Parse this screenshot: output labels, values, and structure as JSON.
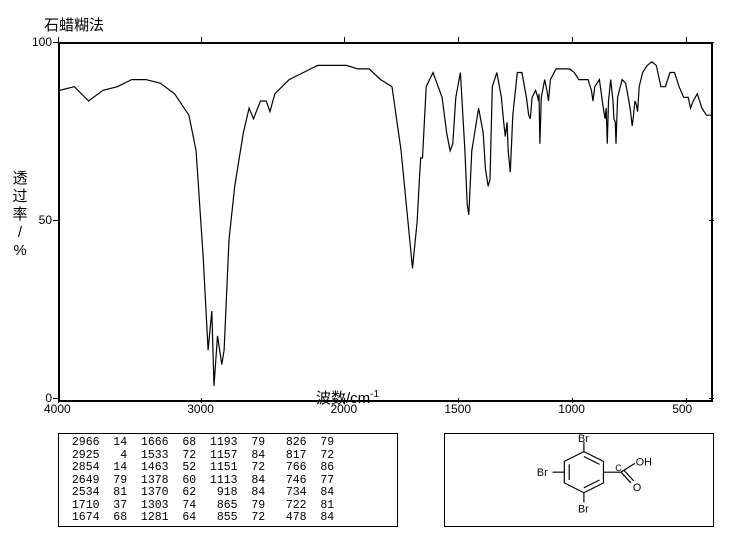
{
  "title_top": "石蜡糊法",
  "y_axis": {
    "label_lines": [
      "透",
      "过",
      "率",
      "/",
      "%"
    ],
    "ticks": [
      {
        "val": 0,
        "frac": 0.0
      },
      {
        "val": 50,
        "frac": 0.5
      },
      {
        "val": 100,
        "frac": 1.0
      }
    ],
    "range": [
      0,
      100
    ]
  },
  "x_axis": {
    "label": "波数/cm",
    "label_sup": "-1",
    "ticks": [
      4000,
      3000,
      2000,
      1500,
      1000,
      500
    ],
    "range": [
      4000,
      400
    ]
  },
  "spectrum": {
    "points": [
      [
        4000,
        87
      ],
      [
        3900,
        88
      ],
      [
        3800,
        84
      ],
      [
        3700,
        87
      ],
      [
        3600,
        88
      ],
      [
        3500,
        90
      ],
      [
        3400,
        90
      ],
      [
        3300,
        89
      ],
      [
        3200,
        86
      ],
      [
        3100,
        80
      ],
      [
        3050,
        70
      ],
      [
        3000,
        40
      ],
      [
        2966,
        14
      ],
      [
        2940,
        25
      ],
      [
        2925,
        4
      ],
      [
        2900,
        18
      ],
      [
        2870,
        10
      ],
      [
        2854,
        14
      ],
      [
        2820,
        45
      ],
      [
        2780,
        60
      ],
      [
        2720,
        75
      ],
      [
        2680,
        82
      ],
      [
        2649,
        79
      ],
      [
        2600,
        84
      ],
      [
        2560,
        84
      ],
      [
        2534,
        81
      ],
      [
        2500,
        86
      ],
      [
        2450,
        88
      ],
      [
        2400,
        90
      ],
      [
        2350,
        91
      ],
      [
        2300,
        92
      ],
      [
        2250,
        93
      ],
      [
        2200,
        94
      ],
      [
        2150,
        94
      ],
      [
        2100,
        94
      ],
      [
        2050,
        94
      ],
      [
        2000,
        94
      ],
      [
        1950,
        93
      ],
      [
        1900,
        93
      ],
      [
        1850,
        90
      ],
      [
        1800,
        88
      ],
      [
        1760,
        70
      ],
      [
        1730,
        50
      ],
      [
        1710,
        37
      ],
      [
        1690,
        50
      ],
      [
        1680,
        62
      ],
      [
        1674,
        68
      ],
      [
        1666,
        68
      ],
      [
        1650,
        88
      ],
      [
        1620,
        92
      ],
      [
        1580,
        85
      ],
      [
        1560,
        75
      ],
      [
        1545,
        70
      ],
      [
        1533,
        72
      ],
      [
        1520,
        85
      ],
      [
        1500,
        92
      ],
      [
        1480,
        70
      ],
      [
        1470,
        55
      ],
      [
        1463,
        52
      ],
      [
        1450,
        70
      ],
      [
        1420,
        82
      ],
      [
        1400,
        75
      ],
      [
        1390,
        65
      ],
      [
        1378,
        60
      ],
      [
        1370,
        62
      ],
      [
        1360,
        88
      ],
      [
        1340,
        92
      ],
      [
        1320,
        85
      ],
      [
        1310,
        78
      ],
      [
        1303,
        74
      ],
      [
        1295,
        78
      ],
      [
        1290,
        70
      ],
      [
        1281,
        64
      ],
      [
        1270,
        80
      ],
      [
        1250,
        92
      ],
      [
        1230,
        92
      ],
      [
        1210,
        85
      ],
      [
        1200,
        80
      ],
      [
        1193,
        79
      ],
      [
        1185,
        85
      ],
      [
        1170,
        87
      ],
      [
        1160,
        85
      ],
      [
        1157,
        84
      ],
      [
        1155,
        86
      ],
      [
        1151,
        72
      ],
      [
        1145,
        85
      ],
      [
        1130,
        90
      ],
      [
        1120,
        87
      ],
      [
        1113,
        84
      ],
      [
        1105,
        90
      ],
      [
        1080,
        93
      ],
      [
        1050,
        93
      ],
      [
        1020,
        93
      ],
      [
        1000,
        92
      ],
      [
        980,
        90
      ],
      [
        960,
        90
      ],
      [
        940,
        90
      ],
      [
        925,
        87
      ],
      [
        918,
        84
      ],
      [
        910,
        88
      ],
      [
        890,
        90
      ],
      [
        875,
        83
      ],
      [
        865,
        79
      ],
      [
        860,
        82
      ],
      [
        855,
        72
      ],
      [
        850,
        84
      ],
      [
        840,
        90
      ],
      [
        830,
        84
      ],
      [
        826,
        79
      ],
      [
        820,
        78
      ],
      [
        817,
        72
      ],
      [
        810,
        85
      ],
      [
        790,
        90
      ],
      [
        775,
        89
      ],
      [
        766,
        86
      ],
      [
        755,
        82
      ],
      [
        746,
        77
      ],
      [
        740,
        80
      ],
      [
        734,
        84
      ],
      [
        728,
        83
      ],
      [
        722,
        81
      ],
      [
        715,
        88
      ],
      [
        700,
        92
      ],
      [
        680,
        94
      ],
      [
        660,
        95
      ],
      [
        640,
        94
      ],
      [
        620,
        88
      ],
      [
        600,
        88
      ],
      [
        580,
        92
      ],
      [
        560,
        92
      ],
      [
        540,
        88
      ],
      [
        520,
        85
      ],
      [
        500,
        85
      ],
      [
        490,
        82
      ],
      [
        478,
        84
      ],
      [
        460,
        86
      ],
      [
        440,
        82
      ],
      [
        420,
        80
      ],
      [
        400,
        80
      ]
    ],
    "color": "#000000",
    "line_width": 1.2
  },
  "peak_table": {
    "cols": [
      [
        [
          2966,
          14
        ],
        [
          2925,
          4
        ],
        [
          2854,
          14
        ],
        [
          2649,
          79
        ],
        [
          2534,
          81
        ],
        [
          1710,
          37
        ],
        [
          1674,
          68
        ]
      ],
      [
        [
          1666,
          68
        ],
        [
          1533,
          72
        ],
        [
          1463,
          52
        ],
        [
          1378,
          60
        ],
        [
          1370,
          62
        ],
        [
          1303,
          74
        ],
        [
          1281,
          64
        ]
      ],
      [
        [
          1193,
          79
        ],
        [
          1157,
          84
        ],
        [
          1151,
          72
        ],
        [
          1113,
          84
        ],
        [
          918,
          84
        ],
        [
          865,
          79
        ],
        [
          855,
          72
        ]
      ],
      [
        [
          826,
          79
        ],
        [
          817,
          72
        ],
        [
          766,
          86
        ],
        [
          746,
          77
        ],
        [
          734,
          84
        ],
        [
          722,
          81
        ],
        [
          478,
          84
        ]
      ]
    ]
  },
  "structure": {
    "atoms": [
      "Br",
      "Br",
      "Br",
      "C",
      "OH",
      "O"
    ],
    "desc": "2,4,6-tribromobenzoic acid"
  },
  "colors": {
    "fg": "#000000",
    "bg": "#ffffff"
  }
}
